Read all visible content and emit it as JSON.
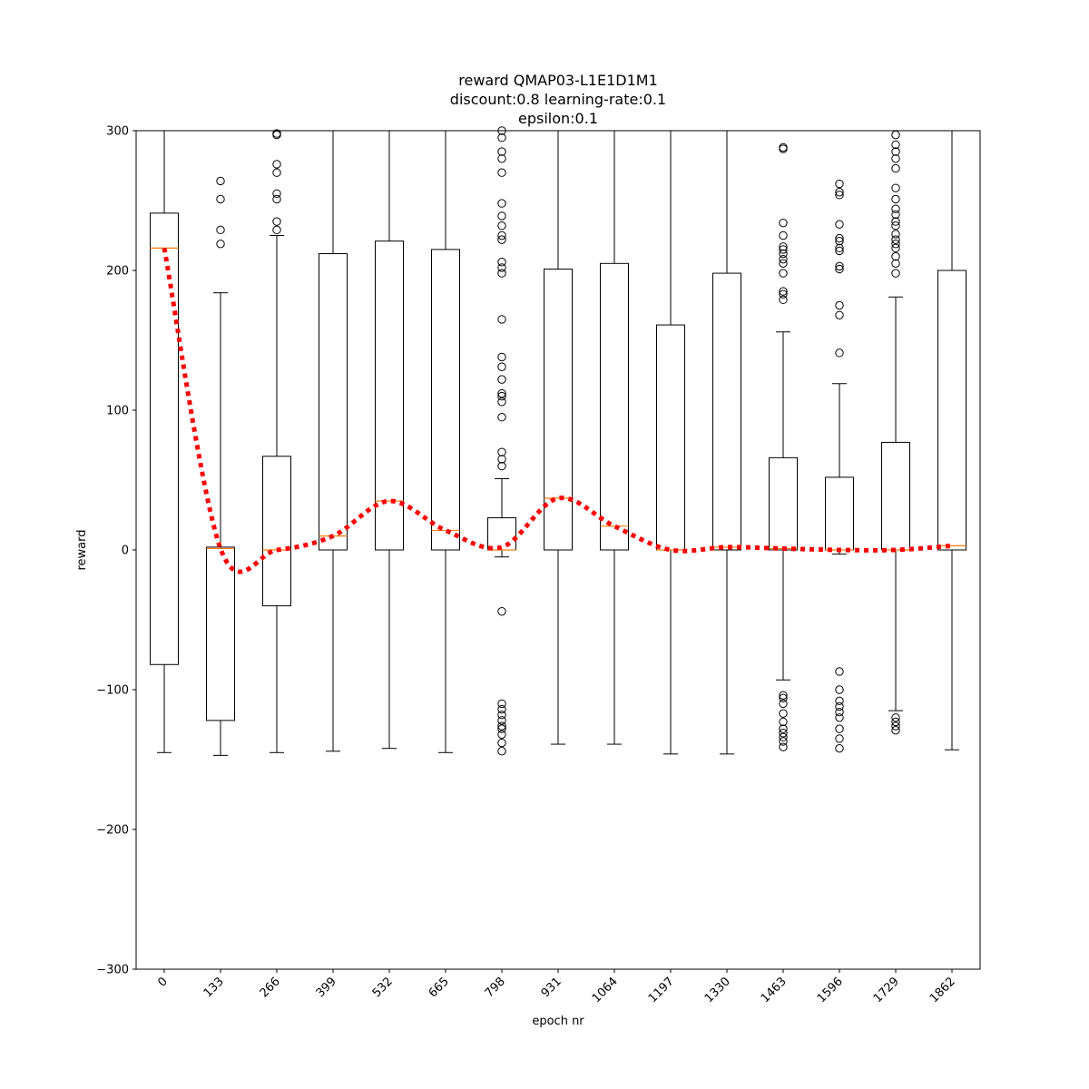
{
  "chart_data": {
    "type": "box",
    "title_lines": [
      "reward QMAP03-L1E1D1M1",
      "discount:0.8 learning-rate:0.1",
      "epsilon:0.1"
    ],
    "xlabel": "epoch nr",
    "ylabel": "reward",
    "ylim": [
      -300,
      300
    ],
    "yticks": [
      -300,
      -200,
      -100,
      0,
      100,
      200,
      300
    ],
    "grid": false,
    "colors": {
      "box": "#000000",
      "median": "#ff7f0e",
      "mean_line": "#ff0000"
    },
    "categories": [
      "0",
      "133",
      "266",
      "399",
      "532",
      "665",
      "798",
      "931",
      "1064",
      "1197",
      "1330",
      "1463",
      "1596",
      "1729",
      "1862"
    ],
    "boxes": [
      {
        "q1": -82,
        "median": 216,
        "q3": 241,
        "whisker_low": -145,
        "whisker_high": 300,
        "outliers": []
      },
      {
        "q1": -122,
        "median": 1,
        "q3": 2,
        "whisker_low": -147,
        "whisker_high": 184,
        "outliers": [
          219,
          229,
          251,
          264
        ]
      },
      {
        "q1": -40,
        "median": 0,
        "q3": 67,
        "whisker_low": -145,
        "whisker_high": 225,
        "outliers": [
          229,
          235,
          251,
          255,
          270,
          276,
          297,
          298
        ]
      },
      {
        "q1": 0,
        "median": 10,
        "q3": 212,
        "whisker_low": -144,
        "whisker_high": 300,
        "outliers": []
      },
      {
        "q1": 0,
        "median": 35,
        "q3": 221,
        "whisker_low": -142,
        "whisker_high": 300,
        "outliers": []
      },
      {
        "q1": 0,
        "median": 14,
        "q3": 215,
        "whisker_low": -145,
        "whisker_high": 300,
        "outliers": []
      },
      {
        "q1": 0,
        "median": 0,
        "q3": 23,
        "whisker_low": -5,
        "whisker_high": 51,
        "outliers": [
          -144,
          -138,
          -132,
          -128,
          -126,
          -122,
          -118,
          -114,
          -110,
          -44,
          60,
          65,
          70,
          95,
          106,
          110,
          112,
          122,
          131,
          138,
          165,
          198,
          202,
          206,
          222,
          225,
          232,
          239,
          248,
          270,
          280,
          285,
          295,
          300
        ]
      },
      {
        "q1": 0,
        "median": 37,
        "q3": 201,
        "whisker_low": -139,
        "whisker_high": 300,
        "outliers": []
      },
      {
        "q1": 0,
        "median": 17,
        "q3": 205,
        "whisker_low": -139,
        "whisker_high": 300,
        "outliers": []
      },
      {
        "q1": 0,
        "median": 0,
        "q3": 161,
        "whisker_low": -146,
        "whisker_high": 300,
        "outliers": []
      },
      {
        "q1": 0,
        "median": 2,
        "q3": 198,
        "whisker_low": -146,
        "whisker_high": 300,
        "outliers": []
      },
      {
        "q1": 0,
        "median": 1,
        "q3": 66,
        "whisker_low": -93,
        "whisker_high": 156,
        "outliers": [
          -141,
          -137,
          -134,
          -131,
          -128,
          -123,
          -117,
          -110,
          -106,
          -104,
          179,
          183,
          185,
          198,
          205,
          208,
          212,
          215,
          217,
          225,
          234,
          287,
          288
        ]
      },
      {
        "q1": 0,
        "median": 0,
        "q3": 52,
        "whisker_low": -3,
        "whisker_high": 119,
        "outliers": [
          -142,
          -135,
          -128,
          -120,
          -116,
          -112,
          -108,
          -100,
          -87,
          141,
          168,
          175,
          201,
          203,
          214,
          216,
          221,
          223,
          233,
          254,
          256,
          262
        ]
      },
      {
        "q1": 0,
        "median": 0,
        "q3": 77,
        "whisker_low": -115,
        "whisker_high": 181,
        "outliers": [
          -129,
          -126,
          -123,
          -120,
          198,
          205,
          210,
          216,
          219,
          222,
          226,
          232,
          235,
          240,
          244,
          251,
          259,
          273,
          280,
          285,
          290,
          297
        ]
      },
      {
        "q1": 0,
        "median": 3,
        "q3": 200,
        "whisker_low": -143,
        "whisker_high": 300,
        "outliers": []
      }
    ],
    "mean_line": [
      216,
      1,
      0,
      10,
      35,
      14,
      2,
      37,
      17,
      0,
      2,
      1,
      0,
      0,
      3
    ]
  }
}
